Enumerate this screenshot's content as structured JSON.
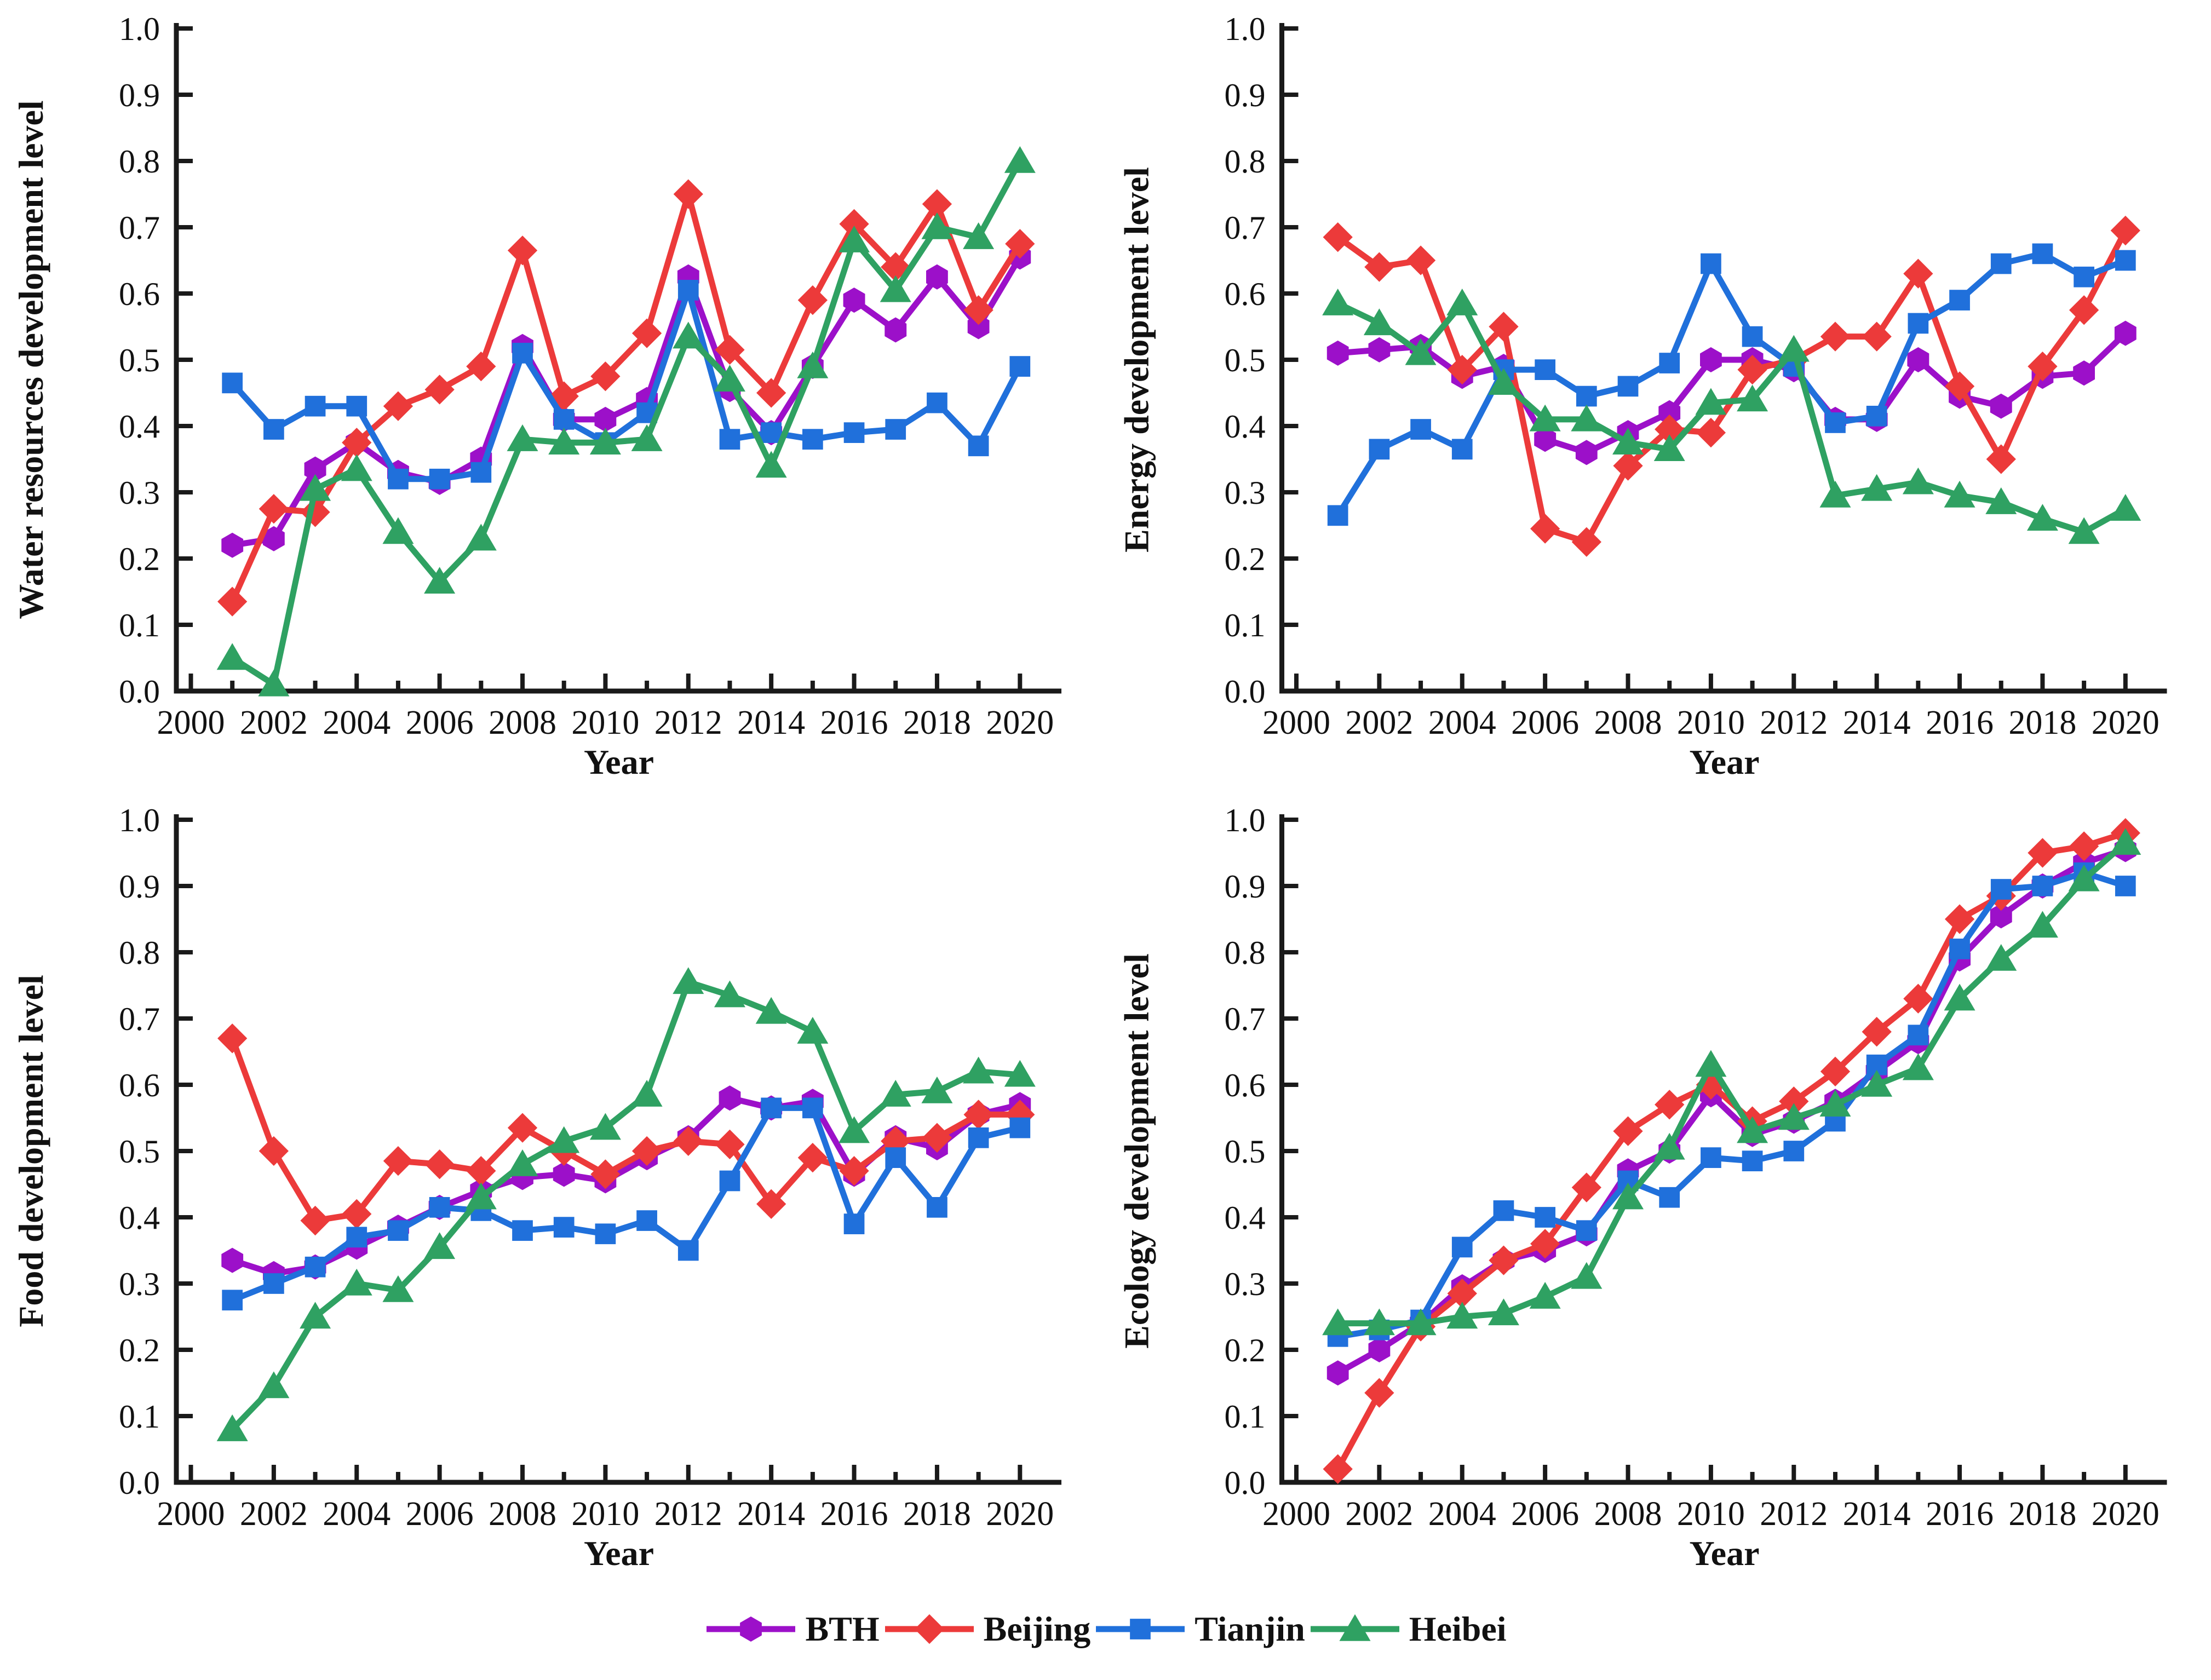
{
  "page": {
    "background": "#ffffff",
    "text_color": "#111111",
    "axis_color": "#1a1a1a"
  },
  "legend": {
    "position": "bottom-center",
    "items": [
      {
        "id": "bth",
        "label": "BTH",
        "color": "#9C10C9",
        "marker": "hexagon"
      },
      {
        "id": "beijing",
        "label": "Beijing",
        "color": "#EC3A3A",
        "marker": "diamond"
      },
      {
        "id": "tianjin",
        "label": "Tianjin",
        "color": "#2070DB",
        "marker": "square"
      },
      {
        "id": "heibei",
        "label": "Heibei",
        "color": "#2FA162",
        "marker": "triangle"
      }
    ]
  },
  "chart_data": [
    {
      "type": "line",
      "title": "",
      "ylabel": "Water resources development level",
      "xlabel": "Year",
      "xlim": [
        2000,
        2021
      ],
      "ylim": [
        0.0,
        1.0
      ],
      "xticks": [
        2000,
        2002,
        2004,
        2006,
        2008,
        2010,
        2012,
        2014,
        2016,
        2018,
        2020
      ],
      "yticks": [
        0.0,
        0.1,
        0.2,
        0.3,
        0.4,
        0.5,
        0.6,
        0.7,
        0.8,
        0.9,
        1.0
      ],
      "grid": false,
      "x": [
        2001,
        2002,
        2003,
        2004,
        2005,
        2006,
        2007,
        2008,
        2009,
        2010,
        2011,
        2012,
        2013,
        2014,
        2015,
        2016,
        2017,
        2018,
        2019,
        2020
      ],
      "series": [
        {
          "name": "BTH",
          "marker": "hexagon",
          "color": "#9C10C9",
          "values": [
            0.22,
            0.23,
            0.335,
            0.375,
            0.33,
            0.315,
            0.35,
            0.52,
            0.41,
            0.41,
            0.44,
            0.625,
            0.455,
            0.39,
            0.49,
            0.59,
            0.545,
            0.625,
            0.55,
            0.655
          ]
        },
        {
          "name": "Beijing",
          "marker": "diamond",
          "color": "#EC3A3A",
          "values": [
            0.135,
            0.275,
            0.27,
            0.375,
            0.43,
            0.455,
            0.49,
            0.665,
            0.445,
            0.475,
            0.54,
            0.75,
            0.515,
            0.45,
            0.59,
            0.705,
            0.64,
            0.735,
            0.575,
            0.675
          ]
        },
        {
          "name": "Tianjin",
          "marker": "square",
          "color": "#2070DB",
          "values": [
            0.465,
            0.395,
            0.43,
            0.43,
            0.32,
            0.32,
            0.33,
            0.51,
            0.41,
            0.375,
            0.42,
            0.605,
            0.38,
            0.39,
            0.38,
            0.39,
            0.395,
            0.435,
            0.37,
            0.49
          ]
        },
        {
          "name": "Heibei",
          "marker": "triangle",
          "color": "#2FA162",
          "values": [
            0.05,
            0.01,
            0.305,
            0.335,
            0.24,
            0.165,
            0.23,
            0.38,
            0.375,
            0.375,
            0.38,
            0.535,
            0.47,
            0.34,
            0.49,
            0.68,
            0.605,
            0.7,
            0.685,
            0.8
          ]
        }
      ]
    },
    {
      "type": "line",
      "title": "",
      "ylabel": "Energy development level",
      "xlabel": "Year",
      "xlim": [
        2000,
        2021
      ],
      "ylim": [
        0.0,
        1.0
      ],
      "xticks": [
        2000,
        2002,
        2004,
        2006,
        2008,
        2010,
        2012,
        2014,
        2016,
        2018,
        2020
      ],
      "yticks": [
        0.0,
        0.1,
        0.2,
        0.3,
        0.4,
        0.5,
        0.6,
        0.7,
        0.8,
        0.9,
        1.0
      ],
      "grid": false,
      "x": [
        2001,
        2002,
        2003,
        2004,
        2005,
        2006,
        2007,
        2008,
        2009,
        2010,
        2011,
        2012,
        2013,
        2014,
        2015,
        2016,
        2017,
        2018,
        2019,
        2020
      ],
      "series": [
        {
          "name": "BTH",
          "marker": "hexagon",
          "color": "#9C10C9",
          "values": [
            0.51,
            0.515,
            0.52,
            0.475,
            0.49,
            0.38,
            0.36,
            0.39,
            0.42,
            0.5,
            0.5,
            0.485,
            0.41,
            0.41,
            0.5,
            0.445,
            0.43,
            0.475,
            0.48,
            0.54
          ]
        },
        {
          "name": "Beijing",
          "marker": "diamond",
          "color": "#EC3A3A",
          "values": [
            0.685,
            0.64,
            0.65,
            0.485,
            0.55,
            0.245,
            0.225,
            0.34,
            0.395,
            0.39,
            0.485,
            0.5,
            0.535,
            0.535,
            0.63,
            0.46,
            0.35,
            0.49,
            0.575,
            0.695
          ]
        },
        {
          "name": "Tianjin",
          "marker": "square",
          "color": "#2070DB",
          "values": [
            0.265,
            0.365,
            0.395,
            0.365,
            0.485,
            0.485,
            0.445,
            0.46,
            0.495,
            0.645,
            0.535,
            0.49,
            0.405,
            0.415,
            0.555,
            0.59,
            0.645,
            0.66,
            0.625,
            0.65
          ]
        },
        {
          "name": "Heibei",
          "marker": "triangle",
          "color": "#2FA162",
          "values": [
            0.585,
            0.555,
            0.51,
            0.585,
            0.465,
            0.41,
            0.41,
            0.375,
            0.365,
            0.435,
            0.44,
            0.515,
            0.295,
            0.305,
            0.315,
            0.295,
            0.285,
            0.26,
            0.24,
            0.275
          ]
        }
      ]
    },
    {
      "type": "line",
      "title": "",
      "ylabel": "Food development level",
      "xlabel": "Year",
      "xlim": [
        2000,
        2021
      ],
      "ylim": [
        0.0,
        1.0
      ],
      "xticks": [
        2000,
        2002,
        2004,
        2006,
        2008,
        2010,
        2012,
        2014,
        2016,
        2018,
        2020
      ],
      "yticks": [
        0.0,
        0.1,
        0.2,
        0.3,
        0.4,
        0.5,
        0.6,
        0.7,
        0.8,
        0.9,
        1.0
      ],
      "grid": false,
      "x": [
        2001,
        2002,
        2003,
        2004,
        2005,
        2006,
        2007,
        2008,
        2009,
        2010,
        2011,
        2012,
        2013,
        2014,
        2015,
        2016,
        2017,
        2018,
        2019,
        2020
      ],
      "series": [
        {
          "name": "BTH",
          "marker": "hexagon",
          "color": "#9C10C9",
          "values": [
            0.335,
            0.315,
            0.325,
            0.355,
            0.385,
            0.415,
            0.44,
            0.46,
            0.465,
            0.455,
            0.49,
            0.52,
            0.58,
            0.565,
            0.575,
            0.465,
            0.52,
            0.505,
            0.555,
            0.57
          ]
        },
        {
          "name": "Beijing",
          "marker": "diamond",
          "color": "#EC3A3A",
          "values": [
            0.67,
            0.5,
            0.395,
            0.405,
            0.485,
            0.48,
            0.47,
            0.535,
            0.5,
            0.465,
            0.5,
            0.515,
            0.51,
            0.42,
            0.49,
            0.47,
            0.515,
            0.52,
            0.555,
            0.555
          ]
        },
        {
          "name": "Tianjin",
          "marker": "square",
          "color": "#2070DB",
          "values": [
            0.275,
            0.3,
            0.325,
            0.37,
            0.38,
            0.415,
            0.41,
            0.38,
            0.385,
            0.375,
            0.395,
            0.35,
            0.455,
            0.565,
            0.565,
            0.39,
            0.49,
            0.415,
            0.52,
            0.535
          ]
        },
        {
          "name": "Heibei",
          "marker": "triangle",
          "color": "#2FA162",
          "values": [
            0.08,
            0.145,
            0.25,
            0.3,
            0.29,
            0.355,
            0.43,
            0.48,
            0.515,
            0.535,
            0.585,
            0.755,
            0.735,
            0.71,
            0.68,
            0.53,
            0.585,
            0.59,
            0.62,
            0.615
          ]
        }
      ]
    },
    {
      "type": "line",
      "title": "",
      "ylabel": "Ecology development level",
      "xlabel": "Year",
      "xlim": [
        2000,
        2021
      ],
      "ylim": [
        0.0,
        1.0
      ],
      "xticks": [
        2000,
        2002,
        2004,
        2006,
        2008,
        2010,
        2012,
        2014,
        2016,
        2018,
        2020
      ],
      "yticks": [
        0.0,
        0.1,
        0.2,
        0.3,
        0.4,
        0.5,
        0.6,
        0.7,
        0.8,
        0.9,
        1.0
      ],
      "grid": false,
      "x": [
        2001,
        2002,
        2003,
        2004,
        2005,
        2006,
        2007,
        2008,
        2009,
        2010,
        2011,
        2012,
        2013,
        2014,
        2015,
        2016,
        2017,
        2018,
        2019,
        2020
      ],
      "series": [
        {
          "name": "BTH",
          "marker": "hexagon",
          "color": "#9C10C9",
          "values": [
            0.165,
            0.2,
            0.24,
            0.295,
            0.335,
            0.35,
            0.375,
            0.47,
            0.5,
            0.585,
            0.525,
            0.545,
            0.575,
            0.62,
            0.665,
            0.79,
            0.855,
            0.9,
            0.935,
            0.955
          ]
        },
        {
          "name": "Beijing",
          "marker": "diamond",
          "color": "#EC3A3A",
          "values": [
            0.02,
            0.135,
            0.235,
            0.285,
            0.335,
            0.36,
            0.445,
            0.53,
            0.57,
            0.6,
            0.545,
            0.575,
            0.62,
            0.68,
            0.73,
            0.85,
            0.885,
            0.95,
            0.96,
            0.98
          ]
        },
        {
          "name": "Tianjin",
          "marker": "square",
          "color": "#2070DB",
          "values": [
            0.22,
            0.23,
            0.245,
            0.355,
            0.41,
            0.4,
            0.38,
            0.455,
            0.43,
            0.49,
            0.485,
            0.5,
            0.545,
            0.63,
            0.675,
            0.805,
            0.895,
            0.9,
            0.92,
            0.9
          ]
        },
        {
          "name": "Heibei",
          "marker": "triangle",
          "color": "#2FA162",
          "values": [
            0.24,
            0.24,
            0.24,
            0.25,
            0.255,
            0.28,
            0.31,
            0.43,
            0.505,
            0.63,
            0.53,
            0.55,
            0.57,
            0.6,
            0.625,
            0.73,
            0.79,
            0.84,
            0.91,
            0.965
          ]
        }
      ]
    }
  ]
}
